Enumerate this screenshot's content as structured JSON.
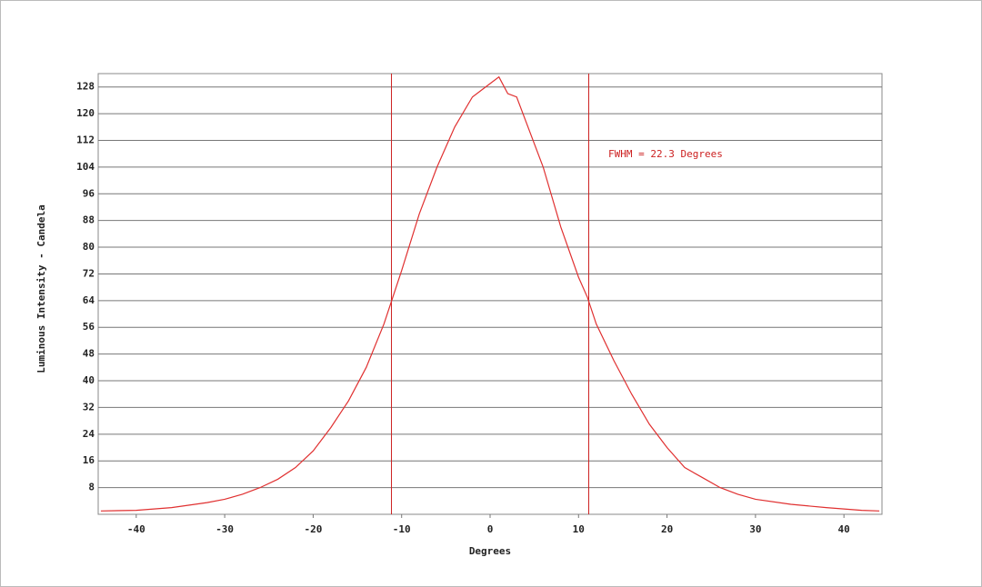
{
  "chart_data": {
    "type": "line",
    "x_label": "Degrees",
    "y_label": "Luminous Intensity - Candela",
    "annotation": "FWHM = 22.3 Degrees",
    "x": [
      -44,
      -40,
      -36,
      -32,
      -30,
      -28,
      -26,
      -24,
      -22,
      -20,
      -18,
      -16,
      -14,
      -12,
      -11,
      -10,
      -8,
      -6,
      -4,
      -2,
      -1,
      0,
      1,
      2,
      3,
      4,
      5,
      6,
      8,
      10,
      11,
      12,
      14,
      16,
      18,
      20,
      22,
      24,
      26,
      28,
      30,
      34,
      38,
      42,
      44
    ],
    "series": [
      {
        "color": "#e03030",
        "values": [
          1,
          1.2,
          2,
          3.5,
          4.5,
          6,
          8,
          10.5,
          14,
          19,
          26,
          34,
          44,
          57,
          65,
          73,
          90,
          104,
          116,
          125,
          127,
          129,
          131,
          126,
          125,
          118,
          111,
          104,
          86,
          71,
          65,
          57,
          46,
          36,
          27,
          20,
          14,
          11,
          8,
          6,
          4.5,
          3,
          2,
          1.2,
          1
        ]
      }
    ],
    "markers": [
      -11.15,
      11.15
    ],
    "marker_color": "#cc2020",
    "xlim": [
      -44.3,
      44.3
    ],
    "ylim": [
      0,
      132
    ],
    "xticks": [
      -40,
      -30,
      -20,
      -10,
      0,
      10,
      20,
      30,
      40
    ],
    "yticks": [
      8,
      16,
      24,
      32,
      40,
      48,
      56,
      64,
      72,
      80,
      88,
      96,
      104,
      112,
      120,
      128
    ],
    "grid": true
  }
}
